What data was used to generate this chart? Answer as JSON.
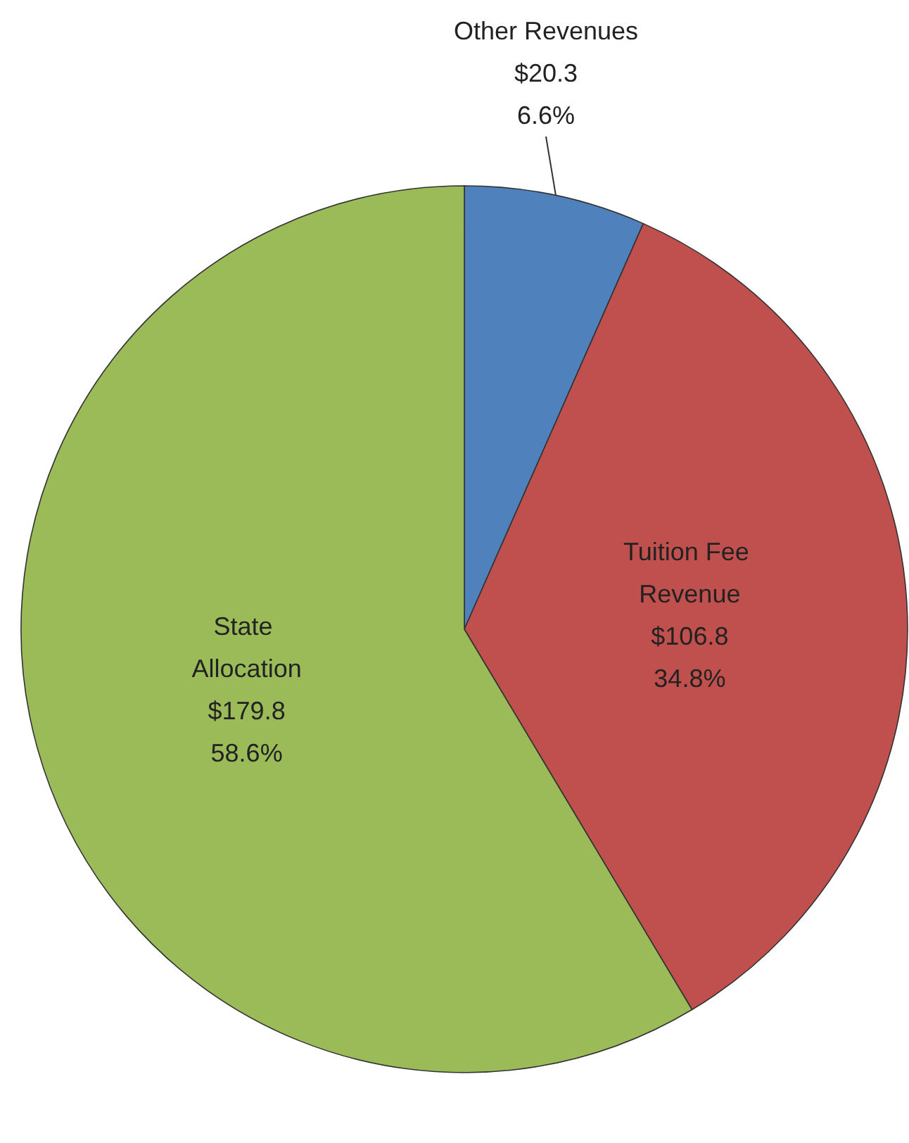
{
  "chart_data": {
    "type": "pie",
    "categories": [
      "Other Revenues",
      "Tuition Fee Revenue",
      "State Allocation"
    ],
    "values": [
      20.3,
      106.8,
      179.8
    ],
    "value_labels": [
      "$20.3\n6.6%",
      "$106.8\n34.8%",
      "$179.8\n58.6%"
    ],
    "colors": [
      "#4f81bd",
      "#c0504d",
      "#9bbb59"
    ],
    "legend": false
  }
}
